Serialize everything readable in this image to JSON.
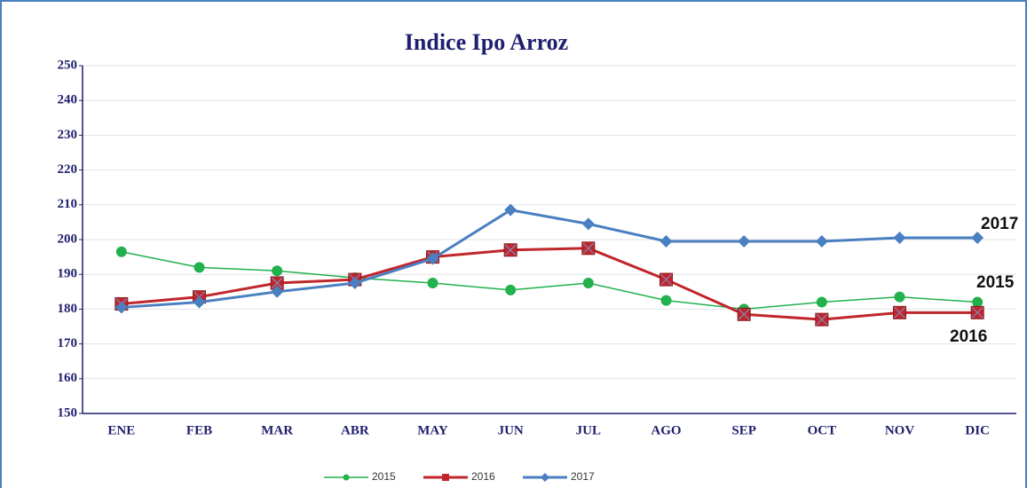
{
  "chart_data": {
    "type": "line",
    "title": "Indice Ipo Arroz",
    "categories": [
      "ENE",
      "FEB",
      "MAR",
      "ABR",
      "MAY",
      "JUN",
      "JUL",
      "AGO",
      "SEP",
      "OCT",
      "NOV",
      "DIC"
    ],
    "series": [
      {
        "name": "2015",
        "color": "#22b14c",
        "marker": "circle",
        "values": [
          196.5,
          192,
          191,
          189,
          187.5,
          185.5,
          187.5,
          182.5,
          180,
          182,
          183.5,
          182
        ]
      },
      {
        "name": "2016",
        "color": "#c0262c",
        "marker": "square",
        "values": [
          181.5,
          183.5,
          187.5,
          188.5,
          195,
          197,
          197.5,
          188.5,
          178.5,
          177,
          179,
          179
        ]
      },
      {
        "name": "2017",
        "color": "#4a7fc1",
        "marker": "diamond",
        "values": [
          180.5,
          182,
          185,
          187.5,
          194.5,
          208.5,
          204.5,
          199.5,
          199.5,
          199.5,
          200.5,
          200.5
        ]
      }
    ],
    "annotations": [
      "2017",
      "2015",
      "2016"
    ],
    "ylim": [
      150,
      250
    ],
    "yticks": [
      150,
      160,
      170,
      180,
      190,
      200,
      210,
      220,
      230,
      240,
      250
    ],
    "grid": true,
    "legend": "bottom"
  }
}
